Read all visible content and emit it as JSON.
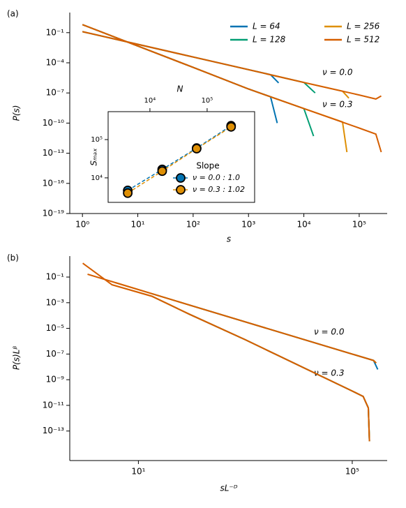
{
  "chart_data": [
    {
      "type": "line",
      "panel_label": "(a)",
      "x_label": "s",
      "y_label": "P(s)",
      "xscale": "log",
      "yscale": "log",
      "xlim": [
        0.59,
        320000
      ],
      "ylim": [
        1e-19,
        10
      ],
      "xticks": [
        {
          "value": 1,
          "label": "10⁰"
        },
        {
          "value": 10,
          "label": "10¹"
        },
        {
          "value": 100,
          "label": "10²"
        },
        {
          "value": 1000,
          "label": "10³"
        },
        {
          "value": 10000,
          "label": "10⁴"
        },
        {
          "value": 100000,
          "label": "10⁵"
        }
      ],
      "yticks": [
        {
          "value": 0.1,
          "label": "10⁻¹"
        },
        {
          "value": 0.0001,
          "label": "10⁻⁴"
        },
        {
          "value": 1e-07,
          "label": "10⁻⁷"
        },
        {
          "value": 1e-10,
          "label": "10⁻¹⁰"
        },
        {
          "value": 1e-13,
          "label": "10⁻¹³"
        },
        {
          "value": 1e-16,
          "label": "10⁻¹⁶"
        },
        {
          "value": 1e-19,
          "label": "10⁻¹⁹"
        }
      ],
      "annotations": [
        "ν = 0.0",
        "ν = 0.3"
      ],
      "legend": "upper right",
      "series": [
        {
          "name": "L = 64",
          "color": "#0173b2",
          "curves": [
            {
              "x": [
                1,
                10,
                100,
                1000,
                2500,
                3500
              ],
              "values": [
                0.126,
                0.0069,
                0.00038,
                2.1e-05,
                6.6e-06,
                1e-06
              ]
            },
            {
              "x": [
                1,
                10,
                100,
                1000,
                2500,
                3300
              ],
              "values": [
                0.63,
                0.0047,
                3.5e-05,
                2.5e-07,
                4.2e-08,
                1e-10
              ]
            }
          ]
        },
        {
          "name": "L = 128",
          "color": "#029e73",
          "curves": [
            {
              "x": [
                1,
                10,
                100,
                1000,
                10000,
                16000
              ],
              "values": [
                0.126,
                0.0069,
                0.00038,
                2.1e-05,
                1.1e-06,
                1e-07
              ]
            },
            {
              "x": [
                1,
                10,
                100,
                1000,
                10000,
                15000
              ],
              "values": [
                0.63,
                0.0047,
                3.5e-05,
                2.5e-07,
                2.8e-09,
                5e-12
              ]
            }
          ]
        },
        {
          "name": "L = 256",
          "color": "#de8f05",
          "curves": [
            {
              "x": [
                1,
                10,
                100,
                1000,
                10000,
                50000,
                65000
              ],
              "values": [
                0.126,
                0.0069,
                0.00038,
                2.1e-05,
                1.1e-06,
                1.5e-07,
                3e-08
              ]
            },
            {
              "x": [
                1,
                10,
                100,
                1000,
                10000,
                50000,
                60000
              ],
              "values": [
                0.63,
                0.0047,
                3.5e-05,
                2.5e-07,
                2.8e-09,
                1.3e-10,
                1.3e-13
              ]
            }
          ]
        },
        {
          "name": "L = 512",
          "color": "#d55e00",
          "curves": [
            {
              "x": [
                1,
                10,
                100,
                1000,
                10000,
                100000,
                200000,
                250000
              ],
              "values": [
                0.126,
                0.0069,
                0.00038,
                2.1e-05,
                1.1e-06,
                6.3e-08,
                2.5e-08,
                5e-08
              ]
            },
            {
              "x": [
                1,
                10,
                100,
                1000,
                10000,
                100000,
                200000,
                250000
              ],
              "values": [
                0.63,
                0.0047,
                3.5e-05,
                2.5e-07,
                2.8e-09,
                3.2e-11,
                8e-12,
                1.3e-13
              ]
            }
          ]
        }
      ]
    },
    {
      "type": "scatter",
      "x_label": "N",
      "y_label": "Sₘₐₓ",
      "xscale": "log",
      "yscale": "log",
      "xlim": [
        1860,
        676000
      ],
      "ylim": [
        2290,
        537000
      ],
      "xticks": [
        {
          "value": 10000,
          "label": "10⁴"
        },
        {
          "value": 100000,
          "label": "10⁵"
        }
      ],
      "yticks": [
        {
          "value": 10000,
          "label": "10⁴"
        },
        {
          "value": 100000,
          "label": "10⁵"
        }
      ],
      "legend_title": "Slope",
      "legend": "lower right",
      "linestyle": "dashed",
      "x": [
        4096,
        16384,
        65536,
        262144
      ],
      "series": [
        {
          "name": "ν = 0.0 : 1.0",
          "color": "#0173b2",
          "values": [
            4700,
            16600,
            60000,
            230000
          ]
        },
        {
          "name": "ν = 0.3 : 1.02",
          "color": "#de8f05",
          "values": [
            4000,
            15000,
            58000,
            215000
          ]
        }
      ]
    },
    {
      "type": "line",
      "panel_label": "(b)",
      "x_label": "sL⁻ᴰ",
      "y_label": "P(s)Lᵝ",
      "xscale": "log",
      "yscale": "log",
      "xlim": [
        0.52,
        450000
      ],
      "ylim": [
        5e-16,
        4.3
      ],
      "xticks": [
        {
          "value": 10,
          "label": "10¹"
        },
        {
          "value": 100000,
          "label": "10⁵"
        }
      ],
      "yticks": [
        {
          "value": 0.1,
          "label": "10⁻¹"
        },
        {
          "value": 0.001,
          "label": "10⁻³"
        },
        {
          "value": 1e-05,
          "label": "10⁻⁵"
        },
        {
          "value": 1e-07,
          "label": "10⁻⁷"
        },
        {
          "value": 1e-09,
          "label": "10⁻⁹"
        },
        {
          "value": 1e-11,
          "label": "10⁻¹¹"
        },
        {
          "value": 1e-13,
          "label": "10⁻¹³"
        }
      ],
      "annotations": [
        "ν = 0.0",
        "ν = 0.3"
      ],
      "series": [
        {
          "color": "#0173b2",
          "curves": [
            {
              "x": [
                87,
                1000,
                100000,
                250000,
                300000
              ],
              "values": [
                0.00069,
                3.2e-05,
                1e-07,
                3.2e-08,
                6.3e-09
              ]
            },
            {
              "x": [
                87,
                1000,
                100000,
                160000,
                200000,
                210000
              ],
              "values": [
                0.000135,
                1.3e-06,
                1.3e-10,
                5e-11,
                6.3e-12,
                1.6e-14
              ]
            }
          ]
        },
        {
          "color": "#029e73",
          "curves": [
            {
              "x": [
                17.8,
                87,
                1000,
                100000,
                250000,
                280000
              ],
              "values": [
                0.0051,
                0.00069,
                3.2e-05,
                1e-07,
                3.2e-08,
                2e-08
              ]
            },
            {
              "x": [
                17.8,
                87,
                1000,
                100000,
                160000,
                200000,
                210000
              ],
              "values": [
                0.0032,
                0.000135,
                1.3e-06,
                1.3e-10,
                5e-11,
                6.3e-12,
                1.6e-14
              ]
            }
          ]
        },
        {
          "color": "#de8f05",
          "curves": [
            {
              "x": [
                3.7,
                17.8,
                87,
                1000,
                100000,
                250000,
                280000
              ],
              "values": [
                0.037,
                0.0051,
                0.00069,
                3.2e-05,
                1e-07,
                3.2e-08,
                2e-08
              ]
            },
            {
              "x": [
                3.2,
                17.8,
                87,
                1000,
                100000,
                160000,
                200000,
                210000
              ],
              "values": [
                0.025,
                0.0032,
                0.000135,
                1.3e-06,
                1.3e-10,
                5e-11,
                6.3e-12,
                1.6e-14
              ]
            }
          ]
        },
        {
          "color": "#d55e00",
          "curves": [
            {
              "x": [
                1.12,
                3.7,
                17.8,
                87,
                1000,
                100000,
                250000,
                280000
              ],
              "values": [
                0.166,
                0.037,
                0.0051,
                0.00069,
                3.2e-05,
                1e-07,
                3.2e-08,
                2e-08
              ]
            },
            {
              "x": [
                0.91,
                3.2,
                17.8,
                87,
                1000,
                100000,
                160000,
                200000,
                210000
              ],
              "values": [
                1.2,
                0.025,
                0.0032,
                0.000135,
                1.3e-06,
                1.3e-10,
                5e-11,
                6.3e-12,
                1.6e-14
              ]
            }
          ]
        }
      ]
    }
  ]
}
